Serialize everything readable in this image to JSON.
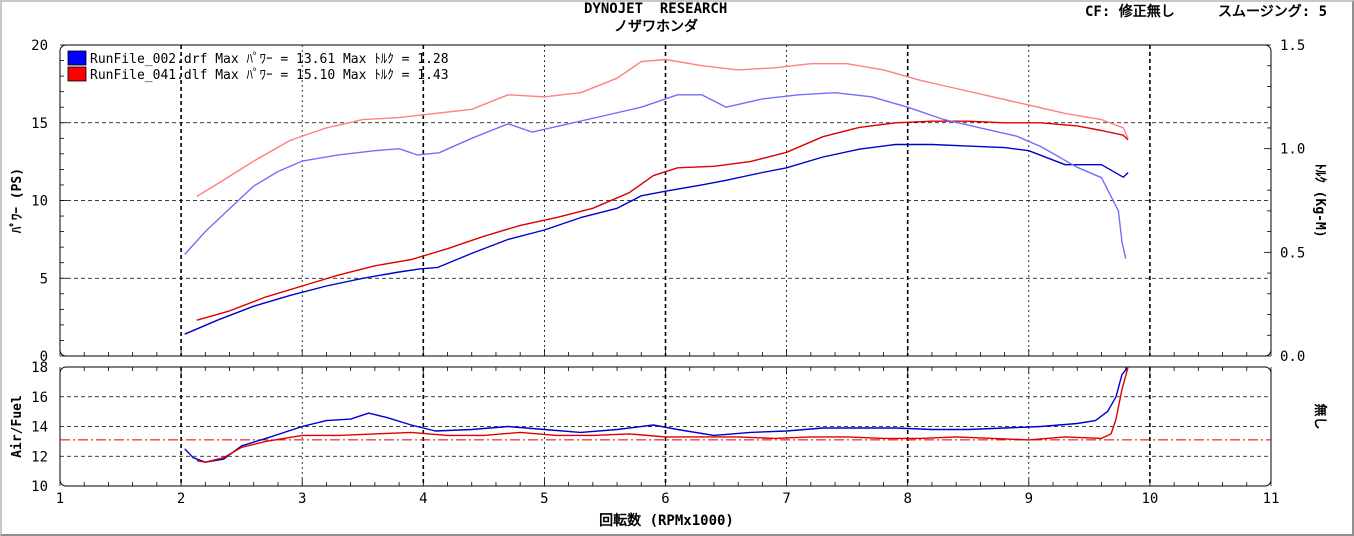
{
  "header": {
    "title": "DYNOJET  RESEARCH",
    "subtitle": "ノザワホンダ",
    "cf_label": "CF: 修正無し",
    "smoothing_label": "スムージング: 5"
  },
  "chart_data": [
    {
      "type": "line",
      "title": "",
      "xlabel": "",
      "ylabel": "ﾊﾟﾜｰ (PS)",
      "y2label": "ﾄﾙｸ (Kg-M)",
      "xlim": [
        1,
        11
      ],
      "ylim": [
        0,
        20
      ],
      "y2lim": [
        0,
        1.5
      ],
      "yticks": [
        "0",
        "5",
        "10",
        "15",
        "20"
      ],
      "y2ticks": [
        "0.0",
        "0.5",
        "1.0",
        "1.5"
      ],
      "grid": true,
      "legend": [
        "RunFile_002.drf  Max ﾊﾟﾜｰ = 13.61  Max ﾄﾙｸ = 1.28",
        "RunFile_041.dlf  Max ﾊﾟﾜｰ = 15.10  Max ﾄﾙｸ = 1.43"
      ],
      "legend_colors": [
        "#0000ff",
        "#ff0000"
      ],
      "series": [
        {
          "name": "RunFile_002.drf ﾊﾟﾜｰ",
          "axis": "left",
          "color": "#0000cc",
          "x": [
            2.03,
            2.3,
            2.6,
            2.9,
            3.2,
            3.5,
            3.8,
            3.97,
            4.12,
            4.4,
            4.7,
            5.0,
            5.3,
            5.6,
            5.8,
            6.0,
            6.3,
            6.5,
            6.8,
            7.0,
            7.3,
            7.6,
            7.9,
            8.2,
            8.5,
            8.8,
            9.0,
            9.3,
            9.6,
            9.78,
            9.82
          ],
          "y": [
            1.4,
            2.3,
            3.2,
            3.9,
            4.5,
            5.0,
            5.4,
            5.6,
            5.7,
            6.6,
            7.5,
            8.1,
            8.9,
            9.5,
            10.3,
            10.6,
            11.0,
            11.3,
            11.8,
            12.1,
            12.8,
            13.3,
            13.6,
            13.6,
            13.5,
            13.4,
            13.2,
            12.3,
            12.3,
            11.5,
            11.8
          ]
        },
        {
          "name": "RunFile_041.dlf ﾊﾟﾜｰ",
          "axis": "left",
          "color": "#dd0000",
          "x": [
            2.13,
            2.4,
            2.7,
            3.0,
            3.3,
            3.6,
            3.9,
            4.2,
            4.5,
            4.8,
            5.1,
            5.4,
            5.7,
            5.9,
            6.1,
            6.4,
            6.7,
            7.0,
            7.3,
            7.6,
            7.9,
            8.2,
            8.5,
            8.8,
            9.1,
            9.4,
            9.6,
            9.78,
            9.82
          ],
          "y": [
            2.3,
            2.9,
            3.8,
            4.5,
            5.2,
            5.8,
            6.2,
            6.9,
            7.7,
            8.4,
            8.9,
            9.5,
            10.5,
            11.6,
            12.1,
            12.2,
            12.5,
            13.1,
            14.1,
            14.7,
            15.0,
            15.1,
            15.1,
            15.0,
            15.0,
            14.8,
            14.5,
            14.2,
            13.9
          ]
        },
        {
          "name": "RunFile_002.drf ﾄﾙｸ",
          "axis": "right",
          "color": "#7070ff",
          "x": [
            2.03,
            2.2,
            2.4,
            2.6,
            2.8,
            3.0,
            3.3,
            3.6,
            3.8,
            3.95,
            4.13,
            4.4,
            4.7,
            4.9,
            5.2,
            5.5,
            5.8,
            6.1,
            6.3,
            6.5,
            6.8,
            7.1,
            7.4,
            7.7,
            8.0,
            8.3,
            8.6,
            8.9,
            9.1,
            9.4,
            9.6,
            9.74,
            9.77,
            9.8
          ],
          "y": [
            0.49,
            0.6,
            0.71,
            0.82,
            0.89,
            0.94,
            0.97,
            0.99,
            1.0,
            0.97,
            0.98,
            1.05,
            1.12,
            1.08,
            1.12,
            1.16,
            1.2,
            1.26,
            1.26,
            1.2,
            1.24,
            1.26,
            1.27,
            1.25,
            1.2,
            1.14,
            1.1,
            1.06,
            1.01,
            0.91,
            0.86,
            0.7,
            0.55,
            0.47
          ]
        },
        {
          "name": "RunFile_041.dlf ﾄﾙｸ",
          "axis": "right",
          "color": "#ff8080",
          "x": [
            2.13,
            2.3,
            2.6,
            2.9,
            3.2,
            3.5,
            3.8,
            4.1,
            4.4,
            4.7,
            5.0,
            5.3,
            5.6,
            5.8,
            6.0,
            6.3,
            6.6,
            6.9,
            7.2,
            7.5,
            7.8,
            8.1,
            8.4,
            8.7,
            9.0,
            9.3,
            9.6,
            9.78,
            9.82
          ],
          "y": [
            0.77,
            0.83,
            0.94,
            1.04,
            1.1,
            1.14,
            1.15,
            1.17,
            1.19,
            1.26,
            1.25,
            1.27,
            1.34,
            1.42,
            1.43,
            1.4,
            1.38,
            1.39,
            1.41,
            1.41,
            1.38,
            1.33,
            1.29,
            1.25,
            1.21,
            1.17,
            1.14,
            1.1,
            1.05
          ]
        }
      ]
    },
    {
      "type": "line",
      "title": "",
      "xlabel": "回転数 (RPMx1000)",
      "ylabel": "Air/Fuel",
      "y2label": "無し",
      "xlim": [
        1,
        11
      ],
      "ylim": [
        10,
        18
      ],
      "xticks": [
        "1",
        "2",
        "3",
        "4",
        "5",
        "6",
        "7",
        "8",
        "9",
        "10",
        "11"
      ],
      "yticks": [
        "10",
        "12",
        "14",
        "16",
        "18"
      ],
      "reference_line": 13.1,
      "grid": true,
      "series": [
        {
          "name": "RunFile_002.drf Air/Fuel",
          "color": "#0000cc",
          "x": [
            2.03,
            2.1,
            2.2,
            2.35,
            2.5,
            2.7,
            3.0,
            3.2,
            3.4,
            3.55,
            3.7,
            3.9,
            4.1,
            4.4,
            4.7,
            5.0,
            5.3,
            5.6,
            5.9,
            6.1,
            6.4,
            6.7,
            7.0,
            7.3,
            7.6,
            7.9,
            8.2,
            8.5,
            8.8,
            9.1,
            9.4,
            9.55,
            9.65,
            9.72,
            9.77,
            9.82
          ],
          "y": [
            12.5,
            11.9,
            11.6,
            11.8,
            12.7,
            13.2,
            14.0,
            14.4,
            14.5,
            14.9,
            14.6,
            14.1,
            13.7,
            13.8,
            14.0,
            13.8,
            13.6,
            13.8,
            14.1,
            13.8,
            13.4,
            13.6,
            13.7,
            13.9,
            13.9,
            13.9,
            13.8,
            13.8,
            13.9,
            14.0,
            14.2,
            14.4,
            15.0,
            16.0,
            17.5,
            18.0
          ]
        },
        {
          "name": "RunFile_041.dlf Air/Fuel",
          "color": "#dd0000",
          "x": [
            2.13,
            2.2,
            2.35,
            2.5,
            2.7,
            3.0,
            3.3,
            3.6,
            3.9,
            4.2,
            4.5,
            4.8,
            5.1,
            5.4,
            5.7,
            6.0,
            6.3,
            6.6,
            6.9,
            7.2,
            7.5,
            7.8,
            8.1,
            8.4,
            8.7,
            9.0,
            9.3,
            9.6,
            9.68,
            9.72,
            9.77,
            9.82
          ],
          "y": [
            11.7,
            11.6,
            11.9,
            12.6,
            13.0,
            13.4,
            13.4,
            13.5,
            13.6,
            13.4,
            13.4,
            13.6,
            13.4,
            13.4,
            13.5,
            13.3,
            13.3,
            13.3,
            13.2,
            13.3,
            13.3,
            13.2,
            13.2,
            13.3,
            13.2,
            13.1,
            13.3,
            13.2,
            13.5,
            14.5,
            16.5,
            18.0
          ]
        }
      ]
    }
  ]
}
